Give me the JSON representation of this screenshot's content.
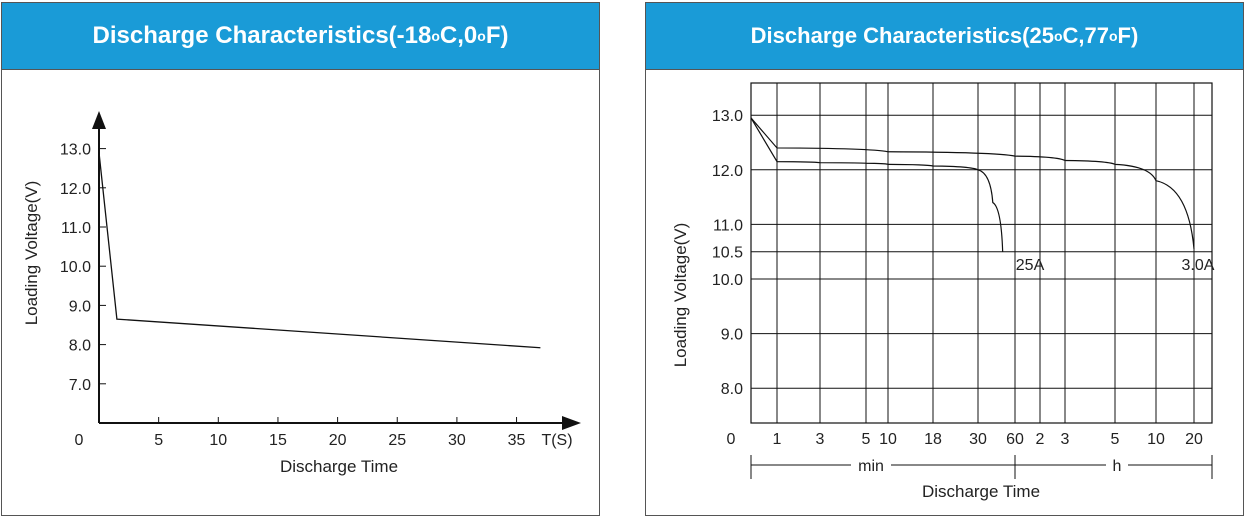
{
  "chart_data": [
    {
      "type": "line",
      "title": {
        "prefix": "Discharge Characteristics(-18",
        "mid": "C,0",
        "suffix": "F)",
        "deg": "o"
      },
      "ylabel": "Loading Voltage(V)",
      "xlabel": "Discharge Time",
      "x_unit": "T(S)",
      "origin_label": "0",
      "x_ticks": [
        5,
        10,
        15,
        20,
        25,
        30,
        35
      ],
      "y_ticks": [
        "7.0",
        "8.0",
        "9.0",
        "10.0",
        "11.0",
        "12.0",
        "13.0"
      ],
      "xlim": [
        0,
        40
      ],
      "ylim": [
        6,
        14
      ],
      "series": [
        {
          "x": [
            0,
            1.5,
            37
          ],
          "y": [
            12.9,
            8.65,
            7.92
          ]
        }
      ]
    },
    {
      "type": "line",
      "title": {
        "prefix": "Discharge Characteristics(25",
        "mid": "C,77",
        "suffix": "F)",
        "deg": "o"
      },
      "ylabel": "Loading Voltage(V)",
      "xlabel": "Discharge Time",
      "origin_label": "0",
      "x_ticks": [
        "1",
        "3",
        "5",
        "10",
        "18",
        "30",
        "60",
        "2",
        "3",
        "5",
        "10",
        "20"
      ],
      "x_units": [
        "min",
        "h"
      ],
      "y_ticks": [
        "8.0",
        "9.0",
        "10.0",
        "10.5",
        "11.0",
        "12.0",
        "13.0"
      ],
      "series": [
        {
          "name": "25A",
          "x_min": [
            0,
            1,
            3,
            5,
            10,
            18,
            30,
            42,
            50
          ],
          "y": [
            12.95,
            12.15,
            12.13,
            12.12,
            12.1,
            12.07,
            12.0,
            11.4,
            10.5
          ]
        },
        {
          "name": "3.0A",
          "x_min": [
            0,
            1,
            10,
            60,
            180,
            300,
            600,
            1200
          ],
          "y": [
            12.95,
            12.4,
            12.33,
            12.25,
            12.17,
            12.1,
            11.8,
            10.55
          ]
        }
      ]
    }
  ]
}
